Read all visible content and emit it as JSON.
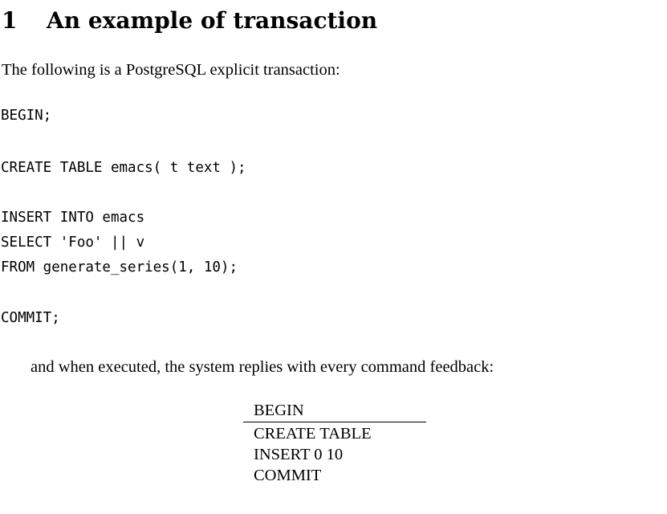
{
  "section": {
    "number": "1",
    "title": "An example of transaction"
  },
  "intro_text": "The following is a PostgreSQL explicit transaction:",
  "code_lines": [
    "BEGIN;",
    "",
    "CREATE TABLE emacs( t text );",
    "",
    "INSERT INTO emacs",
    "SELECT 'Foo' || v",
    "FROM generate_series(1, 10);",
    "",
    "COMMIT;"
  ],
  "followup_text": "and when executed, the system replies with every command feedback:",
  "feedback": [
    "BEGIN",
    "CREATE TABLE",
    "INSERT 0 10",
    "COMMIT"
  ]
}
